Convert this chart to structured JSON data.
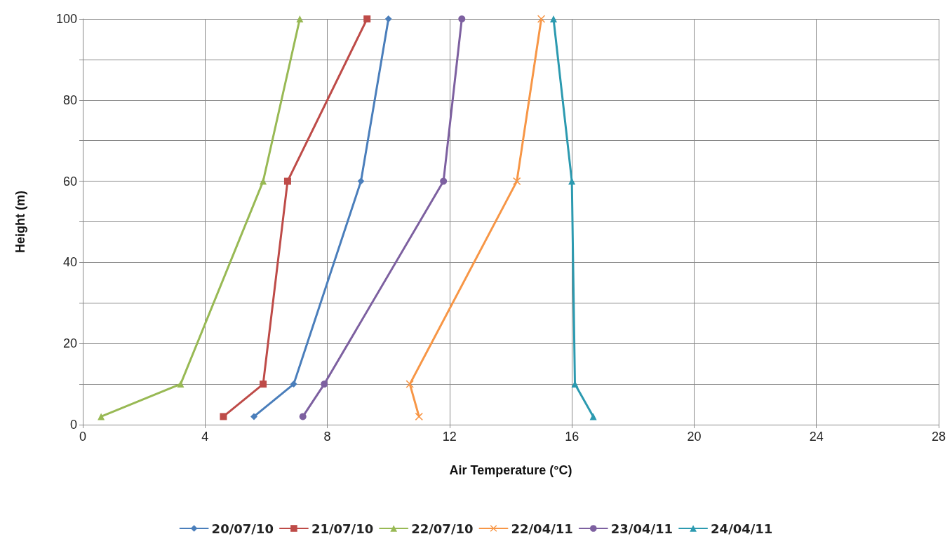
{
  "chart_data": {
    "type": "line",
    "xlabel": "Air Temperature (°C)",
    "ylabel": "Height (m)",
    "xlim": [
      0,
      28
    ],
    "xticks": [
      0,
      4,
      8,
      12,
      16,
      20,
      24,
      28
    ],
    "ylim": [
      0,
      100
    ],
    "yticks": [
      0,
      {
        "value": 10,
        "label": null
      },
      20,
      {
        "value": 30,
        "label": null
      },
      40,
      {
        "value": 50,
        "label": null
      },
      60,
      {
        "value": 70,
        "label": null
      },
      80,
      {
        "value": 90,
        "label": null
      },
      100
    ],
    "grid": true,
    "legend": "bottom",
    "line_style": "solid",
    "series": [
      {
        "name": "20/07/10",
        "color": "#4a7ebb",
        "marker": "diamond",
        "x": [
          5.6,
          6.9,
          9.1,
          10.0
        ],
        "values": [
          2,
          10,
          60,
          100
        ]
      },
      {
        "name": "21/07/10",
        "color": "#be4b48",
        "marker": "square",
        "x": [
          4.6,
          5.9,
          6.7,
          9.3
        ],
        "values": [
          2,
          10,
          60,
          100
        ]
      },
      {
        "name": "22/07/10",
        "color": "#98b954",
        "marker": "triangle",
        "x": [
          0.6,
          3.2,
          5.9,
          7.1
        ],
        "values": [
          2,
          10,
          60,
          100
        ]
      },
      {
        "name": "22/04/11",
        "color": "#f79646",
        "marker": "cross",
        "x": [
          11.0,
          10.7,
          14.2,
          15.0
        ],
        "values": [
          2,
          10,
          60,
          100
        ]
      },
      {
        "name": "23/04/11",
        "color": "#7d60a0",
        "marker": "circle",
        "x": [
          7.2,
          7.9,
          11.8,
          12.4
        ],
        "values": [
          2,
          10,
          60,
          100
        ]
      },
      {
        "name": "24/04/11",
        "color": "#2c9ab0",
        "marker": "triangle",
        "x": [
          16.7,
          16.1,
          16.0,
          15.4
        ],
        "values": [
          2,
          10,
          60,
          100
        ]
      }
    ]
  }
}
